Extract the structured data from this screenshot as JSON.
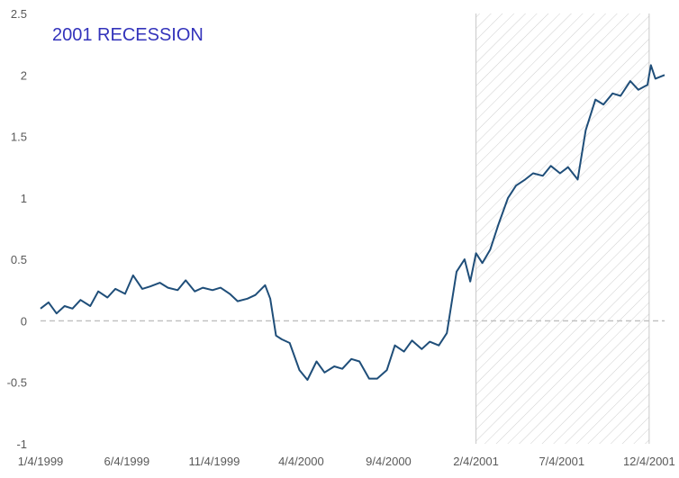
{
  "chart_data": {
    "type": "line",
    "title": "2001 RECESSION",
    "xlabel": "",
    "ylabel": "",
    "ylim": [
      -1,
      2.5
    ],
    "yticks": [
      -1,
      -0.5,
      0,
      0.5,
      1,
      1.5,
      2,
      2.5
    ],
    "ytick_labels": [
      "-1",
      "-0.5",
      "0",
      "0.5",
      "1",
      "1.5",
      "2",
      "2.5"
    ],
    "xrange": [
      "1999-01-04",
      "2001-12-31"
    ],
    "xticks": [
      "1999-01-04",
      "1999-06-04",
      "1999-11-04",
      "2000-04-04",
      "2000-09-04",
      "2001-02-04",
      "2001-07-04",
      "2001-12-04"
    ],
    "xtick_labels": [
      "1/4/1999",
      "6/4/1999",
      "11/4/1999",
      "4/4/2000",
      "9/4/2000",
      "2/4/2001",
      "7/4/2001",
      "12/4/2001"
    ],
    "grid": false,
    "zero_line": true,
    "recession_shading": {
      "start": "2001-02-04",
      "end": "2001-12-04"
    },
    "series": [
      {
        "color": "#1f4e79",
        "points": [
          [
            "1999-01-04",
            0.1
          ],
          [
            "1999-01-18",
            0.15
          ],
          [
            "1999-02-01",
            0.06
          ],
          [
            "1999-02-15",
            0.12
          ],
          [
            "1999-03-01",
            0.1
          ],
          [
            "1999-03-15",
            0.17
          ],
          [
            "1999-04-01",
            0.12
          ],
          [
            "1999-04-15",
            0.24
          ],
          [
            "1999-05-01",
            0.19
          ],
          [
            "1999-05-15",
            0.26
          ],
          [
            "1999-06-01",
            0.22
          ],
          [
            "1999-06-15",
            0.37
          ],
          [
            "1999-07-01",
            0.26
          ],
          [
            "1999-07-15",
            0.28
          ],
          [
            "1999-08-01",
            0.31
          ],
          [
            "1999-08-15",
            0.27
          ],
          [
            "1999-09-01",
            0.25
          ],
          [
            "1999-09-15",
            0.33
          ],
          [
            "1999-10-01",
            0.24
          ],
          [
            "1999-10-15",
            0.27
          ],
          [
            "1999-11-01",
            0.25
          ],
          [
            "1999-11-15",
            0.27
          ],
          [
            "1999-12-01",
            0.22
          ],
          [
            "1999-12-15",
            0.16
          ],
          [
            "2000-01-01",
            0.18
          ],
          [
            "2000-01-15",
            0.21
          ],
          [
            "2000-02-01",
            0.29
          ],
          [
            "2000-02-10",
            0.18
          ],
          [
            "2000-02-20",
            -0.12
          ],
          [
            "2000-03-01",
            -0.15
          ],
          [
            "2000-03-15",
            -0.18
          ],
          [
            "2000-04-01",
            -0.4
          ],
          [
            "2000-04-15",
            -0.48
          ],
          [
            "2000-05-01",
            -0.33
          ],
          [
            "2000-05-15",
            -0.42
          ],
          [
            "2000-06-01",
            -0.37
          ],
          [
            "2000-06-15",
            -0.39
          ],
          [
            "2000-07-01",
            -0.31
          ],
          [
            "2000-07-15",
            -0.33
          ],
          [
            "2000-08-01",
            -0.47
          ],
          [
            "2000-08-15",
            -0.47
          ],
          [
            "2000-09-01",
            -0.4
          ],
          [
            "2000-09-15",
            -0.2
          ],
          [
            "2000-10-01",
            -0.25
          ],
          [
            "2000-10-15",
            -0.16
          ],
          [
            "2000-11-01",
            -0.23
          ],
          [
            "2000-11-15",
            -0.17
          ],
          [
            "2000-12-01",
            -0.2
          ],
          [
            "2000-12-15",
            -0.1
          ],
          [
            "2001-01-01",
            0.4
          ],
          [
            "2001-01-15",
            0.5
          ],
          [
            "2001-01-25",
            0.32
          ],
          [
            "2001-02-04",
            0.55
          ],
          [
            "2001-02-15",
            0.47
          ],
          [
            "2001-03-01",
            0.58
          ],
          [
            "2001-03-15",
            0.78
          ],
          [
            "2001-04-01",
            1.0
          ],
          [
            "2001-04-15",
            1.1
          ],
          [
            "2001-05-01",
            1.15
          ],
          [
            "2001-05-15",
            1.2
          ],
          [
            "2001-06-01",
            1.18
          ],
          [
            "2001-06-15",
            1.26
          ],
          [
            "2001-07-01",
            1.2
          ],
          [
            "2001-07-15",
            1.25
          ],
          [
            "2001-08-01",
            1.15
          ],
          [
            "2001-08-15",
            1.55
          ],
          [
            "2001-09-01",
            1.8
          ],
          [
            "2001-09-15",
            1.76
          ],
          [
            "2001-10-01",
            1.85
          ],
          [
            "2001-10-15",
            1.83
          ],
          [
            "2001-11-01",
            1.95
          ],
          [
            "2001-11-15",
            1.88
          ],
          [
            "2001-12-01",
            1.92
          ],
          [
            "2001-12-07",
            2.08
          ],
          [
            "2001-12-15",
            1.97
          ],
          [
            "2001-12-31",
            2.0
          ]
        ]
      }
    ]
  }
}
